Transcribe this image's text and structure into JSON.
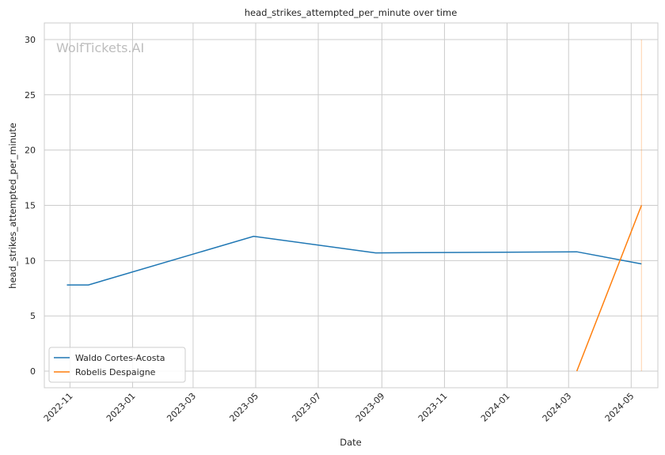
{
  "chart_data": {
    "type": "line",
    "title": "head_strikes_attempted_per_minute over time",
    "xlabel": "Date",
    "ylabel": "head_strikes_attempted_per_minute",
    "watermark": "WolfTickets.AI",
    "x_range": [
      "2022-10-07",
      "2024-05-27"
    ],
    "ylim": [
      -1.5,
      31.5
    ],
    "x_ticks": [
      "2022-11-01",
      "2023-01-01",
      "2023-03-01",
      "2023-05-01",
      "2023-07-01",
      "2023-09-01",
      "2023-11-01",
      "2024-01-01",
      "2024-03-01",
      "2024-05-01"
    ],
    "x_tick_labels": [
      "2022-11",
      "2023-01",
      "2023-03",
      "2023-05",
      "2023-07",
      "2023-09",
      "2023-11",
      "2024-01",
      "2024-03",
      "2024-05"
    ],
    "y_ticks": [
      0,
      5,
      10,
      15,
      20,
      25,
      30
    ],
    "grid": true,
    "legend_position": "lower-left",
    "series": [
      {
        "name": "Waldo Cortes-Acosta",
        "color": "#1f77b4",
        "points": [
          {
            "x": "2022-10-29",
            "y": 7.8
          },
          {
            "x": "2022-11-19",
            "y": 7.8
          },
          {
            "x": "2023-04-29",
            "y": 12.2
          },
          {
            "x": "2023-08-26",
            "y": 10.7
          },
          {
            "x": "2024-03-09",
            "y": 10.8
          },
          {
            "x": "2024-05-11",
            "y": 9.7
          }
        ]
      },
      {
        "name": "Robelis Despaigne",
        "color": "#ff7f0e",
        "points": [
          {
            "x": "2024-03-09",
            "y": 0
          },
          {
            "x": "2024-05-11",
            "y": 15.0
          }
        ]
      }
    ],
    "annotations": [
      {
        "type": "vertical-line",
        "x": "2024-05-11",
        "y_from": 0,
        "y_to": 30,
        "color": "#ff7f0e",
        "opacity": 0.35
      }
    ]
  }
}
